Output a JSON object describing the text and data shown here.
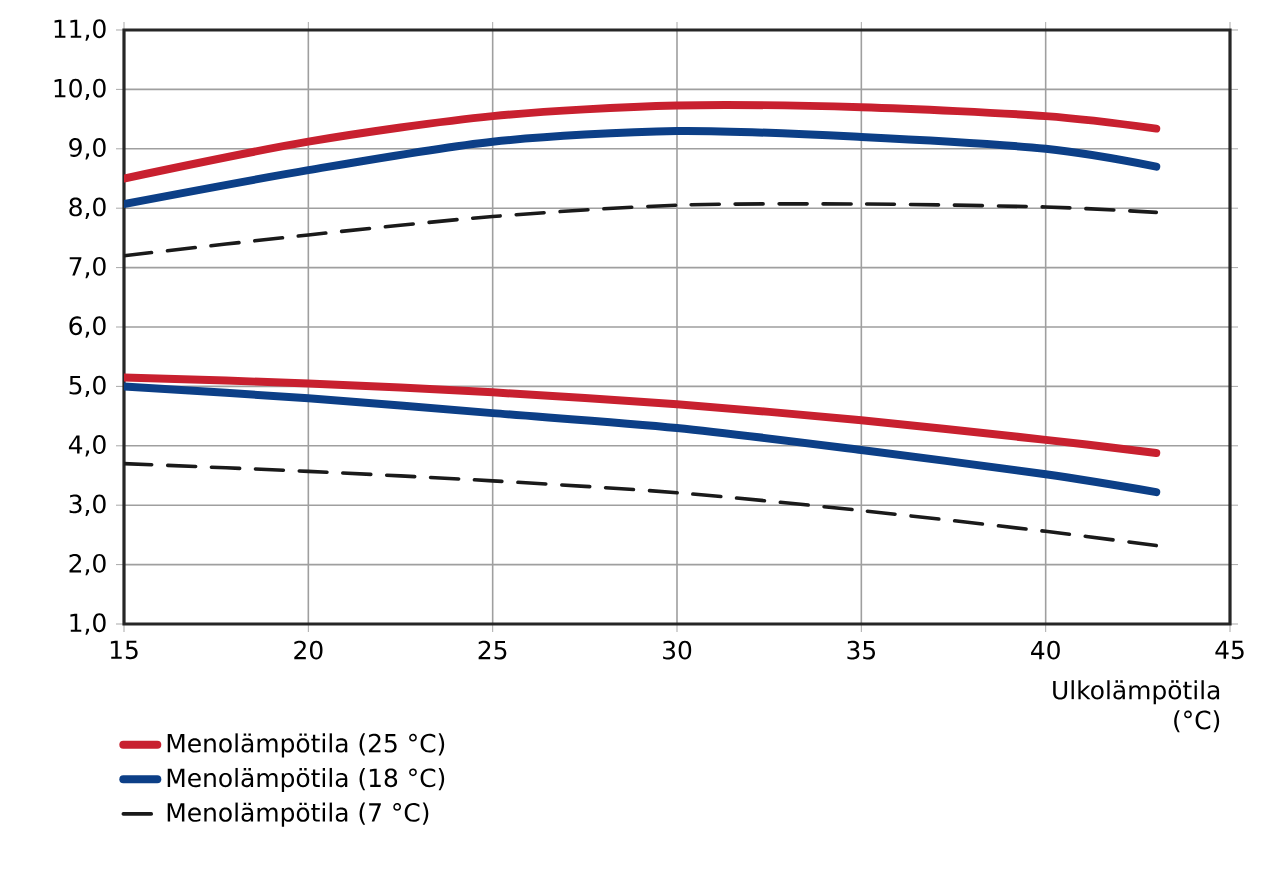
{
  "chart_data": {
    "type": "line",
    "xlabel": "Ulkolämpötila (°C)",
    "x": [
      15,
      20,
      25,
      30,
      35,
      40,
      43
    ],
    "series": [
      {
        "name": "Menolämpötila (25 °C)",
        "color": "#c8202f",
        "line_style": "solid",
        "values": [
          8.5,
          9.12,
          9.55,
          9.73,
          9.7,
          9.55,
          9.34
        ]
      },
      {
        "color": "#c8202f",
        "line_style": "solid",
        "values": [
          5.15,
          5.05,
          4.9,
          4.7,
          4.43,
          4.1,
          3.88
        ]
      },
      {
        "name": "Menolämpötila (18 °C)",
        "color": "#0c3f87",
        "line_style": "solid",
        "values": [
          8.07,
          8.64,
          9.12,
          9.3,
          9.2,
          9.0,
          8.7
        ]
      },
      {
        "color": "#0c3f87",
        "line_style": "solid",
        "values": [
          5.0,
          4.8,
          4.55,
          4.3,
          3.93,
          3.52,
          3.22
        ]
      },
      {
        "name": "Menolämpötila (7 °C)",
        "color": "#1a1a1a",
        "line_style": "dashed",
        "values": [
          7.2,
          7.55,
          7.86,
          8.05,
          8.07,
          8.02,
          7.93
        ]
      },
      {
        "color": "#1a1a1a",
        "line_style": "dashed",
        "values": [
          3.7,
          3.57,
          3.41,
          3.21,
          2.91,
          2.56,
          2.32
        ]
      }
    ],
    "xlim": [
      15,
      45
    ],
    "ylim": [
      1,
      11
    ],
    "xticks": [
      15,
      20,
      25,
      30,
      35,
      40,
      45
    ],
    "yticks": [
      {
        "value": 1,
        "label": "1,0"
      },
      {
        "value": 2,
        "label": "2,0"
      },
      {
        "value": 3,
        "label": "3,0"
      },
      {
        "value": 4,
        "label": "4,0"
      },
      {
        "value": 5,
        "label": "5,0"
      },
      {
        "value": 6,
        "label": "6,0"
      },
      {
        "value": 7,
        "label": "7,0"
      },
      {
        "value": 8,
        "label": "8,0"
      },
      {
        "value": 9,
        "label": "9,0"
      },
      {
        "value": 10,
        "label": "10,0"
      },
      {
        "value": 11,
        "label": "11,0"
      }
    ],
    "grid": true,
    "legend": "bottom left",
    "marker": "none"
  }
}
